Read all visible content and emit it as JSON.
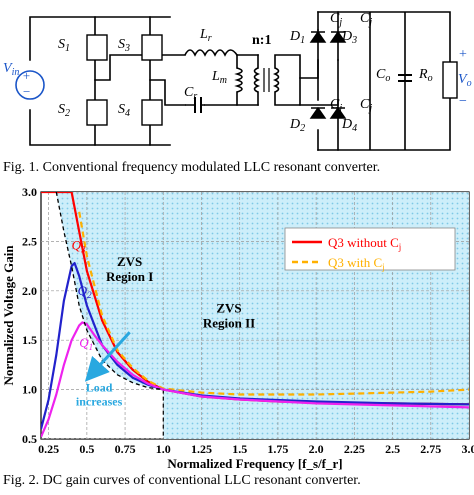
{
  "figure1": {
    "caption": "Fig. 1. Conventional frequency modulated LLC resonant converter.",
    "labels": {
      "vin": "V",
      "vin_sub": "in",
      "plus": "+",
      "minus": "−",
      "s1": "S",
      "s1_sub": "1",
      "s2": "S",
      "s2_sub": "2",
      "s3": "S",
      "s3_sub": "3",
      "s4": "S",
      "s4_sub": "4",
      "lr": "L",
      "lr_sub": "r",
      "lm": "L",
      "lm_sub": "m",
      "cr": "C",
      "cr_sub": "r",
      "ratio": "n:1",
      "d1": "D",
      "d1_sub": "1",
      "d2": "D",
      "d2_sub": "2",
      "d3": "D",
      "d3_sub": "3",
      "d4": "D",
      "d4_sub": "4",
      "cj": "C",
      "cj_sub": "j",
      "co": "C",
      "co_sub": "o",
      "ro": "R",
      "ro_sub": "o",
      "vo": "V",
      "vo_sub": "o"
    }
  },
  "figure2": {
    "caption": "Fig. 2. DC gain curves of conventional LLC resonant converter.",
    "region1": [
      "ZVS",
      "Region I"
    ],
    "region2": [
      "ZVS",
      "Region II"
    ],
    "load_arrow_label": [
      "Load",
      "increases"
    ],
    "q_labels": [
      "Q3",
      "Q2",
      "Q1"
    ],
    "colors": {
      "q3_without": "#ff0000",
      "q3_with": "#ffb000",
      "q2": "#2222cc",
      "q1": "#ee22ee",
      "boundary": "#000000",
      "zvs_fill": "#b9e6f5",
      "arrow": "#29a8e0"
    }
  },
  "chart_data": {
    "type": "line",
    "xlabel": "Normalized Frequency [f_s/f_r]",
    "ylabel": "Normalized Voltage Gain",
    "xlim": [
      0.2,
      3.0
    ],
    "ylim": [
      0.5,
      3.0
    ],
    "xticks": [
      "0.25",
      "0.5",
      "0.75",
      "1.0",
      "1.25",
      "1.5",
      "1.75",
      "2.0",
      "2.25",
      "2.5",
      "2.75",
      "3.0"
    ],
    "yticks": [
      "0.5",
      "1.0",
      "1.5",
      "2.0",
      "2.5",
      "3.0"
    ],
    "grid": true,
    "legend": "top-right",
    "legend_entries": [
      {
        "label": "Q3 without C",
        "sub": "j",
        "color": "#ff0000",
        "dash": false
      },
      {
        "label": "Q3 with C",
        "sub": "j",
        "color": "#ffb000",
        "dash": true
      }
    ],
    "series": [
      {
        "name": "Q3 without Cj",
        "x": [
          0.2,
          0.25,
          0.3,
          0.35,
          0.4,
          0.45,
          0.5,
          0.6,
          0.7,
          0.8,
          0.9,
          1.0,
          1.25,
          1.5,
          1.75,
          2.0,
          2.5,
          3.0
        ],
        "y": [
          3.0,
          3.0,
          3.0,
          3.0,
          3.0,
          2.6,
          2.2,
          1.7,
          1.38,
          1.2,
          1.08,
          1.0,
          0.93,
          0.9,
          0.88,
          0.87,
          0.86,
          0.85
        ]
      },
      {
        "name": "Q3 with Cj",
        "x": [
          0.45,
          0.5,
          0.6,
          0.7,
          0.8,
          0.9,
          1.0,
          1.25,
          1.5,
          1.75,
          2.0,
          2.25,
          2.5,
          2.75,
          3.0
        ],
        "y": [
          2.8,
          2.35,
          1.75,
          1.4,
          1.22,
          1.09,
          1.01,
          0.97,
          0.95,
          0.95,
          0.95,
          0.96,
          0.97,
          0.98,
          1.0
        ]
      },
      {
        "name": "Q2",
        "x": [
          0.2,
          0.25,
          0.3,
          0.35,
          0.4,
          0.42,
          0.45,
          0.5,
          0.6,
          0.7,
          0.8,
          0.9,
          1.0,
          1.25,
          1.5,
          2.0,
          2.5,
          3.0
        ],
        "y": [
          0.6,
          0.9,
          1.35,
          1.9,
          2.25,
          2.28,
          2.15,
          1.85,
          1.45,
          1.25,
          1.12,
          1.05,
          1.0,
          0.94,
          0.91,
          0.88,
          0.86,
          0.85
        ]
      },
      {
        "name": "Q1",
        "x": [
          0.2,
          0.25,
          0.3,
          0.35,
          0.4,
          0.45,
          0.47,
          0.5,
          0.55,
          0.6,
          0.7,
          0.8,
          0.9,
          1.0,
          1.25,
          1.5,
          2.0,
          2.5,
          3.0
        ],
        "y": [
          0.52,
          0.7,
          0.95,
          1.25,
          1.5,
          1.65,
          1.68,
          1.66,
          1.55,
          1.45,
          1.28,
          1.15,
          1.06,
          1.0,
          0.93,
          0.9,
          0.86,
          0.84,
          0.82
        ]
      },
      {
        "name": "Boundary",
        "x": [
          0.3,
          0.35,
          0.4,
          0.45,
          0.5,
          0.6,
          0.7,
          0.8,
          0.9,
          1.0
        ],
        "y": [
          3.0,
          2.6,
          2.25,
          1.85,
          1.6,
          1.3,
          1.15,
          1.07,
          1.02,
          1.0
        ]
      }
    ]
  }
}
